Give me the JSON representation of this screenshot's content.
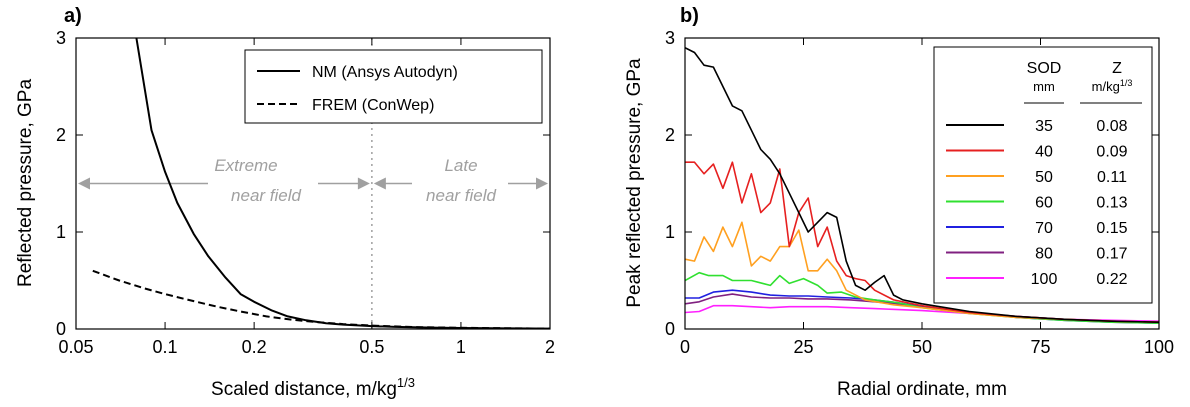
{
  "chart_data": [
    {
      "type": "line",
      "panel_label": "a)",
      "xlabel": "Scaled distance, m/kg",
      "xlabel_sup": "1/3",
      "ylabel": "Reflected pressure, GPa",
      "xscale": "log",
      "xlim": [
        0.05,
        2
      ],
      "ylim": [
        0,
        3
      ],
      "xticks": [
        0.05,
        0.1,
        0.2,
        0.5,
        1,
        2
      ],
      "xtick_labels": [
        "0.05",
        "0.1",
        "0.2",
        "0.5",
        "1",
        "2"
      ],
      "yticks": [
        0,
        1,
        2,
        3
      ],
      "ytick_labels": [
        "0",
        "1",
        "2",
        "3"
      ],
      "legend_position": "top-right",
      "series": [
        {
          "name": "NM (Ansys Autodyn)",
          "style": "solid",
          "color": "#000000",
          "x": [
            0.08,
            0.09,
            0.1,
            0.11,
            0.125,
            0.14,
            0.16,
            0.18,
            0.2,
            0.23,
            0.26,
            0.3,
            0.35,
            0.4,
            0.5,
            0.6,
            0.8,
            1.0,
            1.5,
            2.0
          ],
          "y": [
            3.0,
            2.05,
            1.62,
            1.3,
            0.98,
            0.75,
            0.53,
            0.36,
            0.28,
            0.19,
            0.13,
            0.09,
            0.06,
            0.045,
            0.03,
            0.022,
            0.014,
            0.01,
            0.006,
            0.004
          ]
        },
        {
          "name": "FREM (ConWep)",
          "style": "dashed",
          "color": "#000000",
          "x": [
            0.057,
            0.07,
            0.085,
            0.1,
            0.12,
            0.15,
            0.18,
            0.22,
            0.27,
            0.33,
            0.4,
            0.5,
            0.7,
            1.0,
            1.5,
            2.0
          ],
          "y": [
            0.6,
            0.5,
            0.42,
            0.36,
            0.3,
            0.23,
            0.18,
            0.13,
            0.095,
            0.07,
            0.05,
            0.035,
            0.02,
            0.012,
            0.007,
            0.004
          ]
        }
      ],
      "annotations": {
        "divider_x": 0.5,
        "extreme_label_line1": "Extreme",
        "extreme_label_line2": "near field",
        "late_label_line1": "Late",
        "late_label_line2": "near field",
        "arrow_y": 1.5
      }
    },
    {
      "type": "line",
      "panel_label": "b)",
      "xlabel": "Radial ordinate, mm",
      "ylabel": "Peak reflected pressure, GPa",
      "xlim": [
        0,
        100
      ],
      "ylim": [
        0,
        3
      ],
      "xticks": [
        0,
        25,
        50,
        75,
        100
      ],
      "xtick_labels": [
        "0",
        "25",
        "50",
        "75",
        "100"
      ],
      "yticks": [
        0,
        1,
        2,
        3
      ],
      "ytick_labels": [
        "0",
        "1",
        "2",
        "3"
      ],
      "legend_position": "top-right",
      "legend_headers": {
        "sod": "SOD",
        "sod_unit": "mm",
        "z": "Z",
        "z_unit": "m/kg",
        "z_unit_sup": "1/3"
      },
      "series": [
        {
          "sod": "35",
          "z": "0.08",
          "color": "#000000",
          "x": [
            0,
            2,
            4,
            6,
            8,
            10,
            12,
            14,
            16,
            18,
            20,
            22,
            24,
            26,
            28,
            30,
            32,
            34,
            36,
            38,
            40,
            42,
            44,
            46,
            50,
            60,
            70,
            80,
            90,
            100
          ],
          "y": [
            2.9,
            2.85,
            2.72,
            2.7,
            2.5,
            2.3,
            2.25,
            2.05,
            1.85,
            1.75,
            1.6,
            1.4,
            1.2,
            1.0,
            1.1,
            1.2,
            1.15,
            0.7,
            0.45,
            0.4,
            0.48,
            0.55,
            0.35,
            0.3,
            0.26,
            0.18,
            0.13,
            0.1,
            0.08,
            0.07
          ]
        },
        {
          "sod": "40",
          "z": "0.09",
          "color": "#e62020",
          "x": [
            0,
            2,
            4,
            6,
            8,
            10,
            12,
            14,
            16,
            18,
            20,
            22,
            24,
            26,
            28,
            30,
            32,
            34,
            36,
            38,
            40,
            44,
            50,
            60,
            70,
            80,
            90,
            100
          ],
          "y": [
            1.72,
            1.72,
            1.6,
            1.7,
            1.45,
            1.72,
            1.3,
            1.6,
            1.2,
            1.3,
            1.65,
            0.85,
            1.2,
            1.35,
            0.85,
            1.05,
            0.7,
            0.55,
            0.52,
            0.5,
            0.4,
            0.3,
            0.24,
            0.17,
            0.13,
            0.1,
            0.08,
            0.07
          ]
        },
        {
          "sod": "50",
          "z": "0.11",
          "color": "#ffa020",
          "x": [
            0,
            2,
            4,
            6,
            8,
            10,
            12,
            14,
            16,
            18,
            20,
            22,
            24,
            26,
            28,
            30,
            32,
            34,
            38,
            44,
            50,
            60,
            70,
            80,
            90,
            100
          ],
          "y": [
            0.72,
            0.7,
            0.95,
            0.8,
            1.05,
            0.85,
            1.1,
            0.65,
            0.75,
            0.7,
            0.85,
            0.85,
            1.02,
            0.6,
            0.6,
            0.72,
            0.6,
            0.4,
            0.3,
            0.25,
            0.22,
            0.16,
            0.12,
            0.1,
            0.08,
            0.07
          ]
        },
        {
          "sod": "60",
          "z": "0.13",
          "color": "#30e030",
          "x": [
            0,
            3,
            5,
            8,
            10,
            14,
            18,
            20,
            22,
            25,
            28,
            30,
            33,
            36,
            40,
            45,
            50,
            60,
            70,
            80,
            90,
            100
          ],
          "y": [
            0.5,
            0.58,
            0.55,
            0.55,
            0.5,
            0.5,
            0.45,
            0.55,
            0.47,
            0.52,
            0.45,
            0.37,
            0.38,
            0.33,
            0.3,
            0.27,
            0.22,
            0.16,
            0.12,
            0.09,
            0.07,
            0.06
          ]
        },
        {
          "sod": "70",
          "z": "0.15",
          "color": "#2020e0",
          "x": [
            0,
            3,
            6,
            10,
            14,
            18,
            22,
            26,
            30,
            35,
            40,
            45,
            50,
            60,
            70,
            80,
            90,
            100
          ],
          "y": [
            0.32,
            0.32,
            0.38,
            0.4,
            0.38,
            0.35,
            0.34,
            0.34,
            0.33,
            0.32,
            0.3,
            0.27,
            0.23,
            0.17,
            0.12,
            0.09,
            0.07,
            0.06
          ]
        },
        {
          "sod": "80",
          "z": "0.17",
          "color": "#802080",
          "x": [
            0,
            3,
            6,
            10,
            14,
            18,
            22,
            26,
            30,
            35,
            40,
            45,
            50,
            60,
            70,
            80,
            90,
            100
          ],
          "y": [
            0.26,
            0.28,
            0.33,
            0.36,
            0.33,
            0.32,
            0.32,
            0.31,
            0.31,
            0.3,
            0.28,
            0.26,
            0.23,
            0.17,
            0.13,
            0.1,
            0.08,
            0.07
          ]
        },
        {
          "sod": "100",
          "z": "0.22",
          "color": "#ff20ff",
          "x": [
            0,
            3,
            6,
            10,
            14,
            18,
            22,
            26,
            30,
            35,
            40,
            45,
            50,
            60,
            70,
            80,
            90,
            100
          ],
          "y": [
            0.17,
            0.18,
            0.24,
            0.24,
            0.23,
            0.22,
            0.23,
            0.23,
            0.23,
            0.22,
            0.21,
            0.2,
            0.19,
            0.16,
            0.13,
            0.1,
            0.09,
            0.08
          ]
        }
      ]
    }
  ]
}
